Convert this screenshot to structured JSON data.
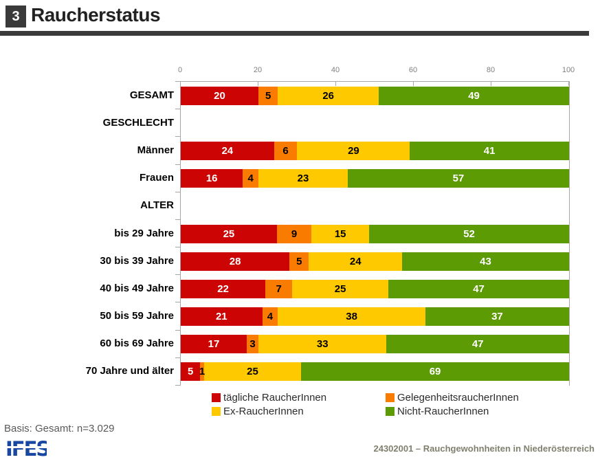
{
  "header": {
    "badge": "3",
    "title": "Raucherstatus",
    "bar_color": "#3A3A3A"
  },
  "chart_data": {
    "type": "bar",
    "stacked": true,
    "orientation": "horizontal",
    "xlim": [
      0,
      100
    ],
    "axis_ticks": [
      0,
      20,
      40,
      60,
      80,
      100
    ],
    "grid": false,
    "legend_position": "bottom",
    "categories": [
      "GESAMT",
      "GESCHLECHT",
      "Männer",
      "Frauen",
      "ALTER",
      "bis 29 Jahre",
      "30 bis 39 Jahre",
      "40 bis 49 Jahre",
      "50 bis 59 Jahre",
      "60 bis 69 Jahre",
      "70 Jahre und älter"
    ],
    "series": [
      {
        "name": "tägliche RaucherInnen",
        "color": "#CC0404",
        "label_color": "#FFFFFF",
        "values": [
          20,
          null,
          24,
          16,
          null,
          25,
          28,
          22,
          21,
          17,
          5
        ]
      },
      {
        "name": "GelegenheitsraucherInnen",
        "color": "#F97C00",
        "label_color": "#000000",
        "values": [
          5,
          null,
          6,
          4,
          null,
          9,
          5,
          7,
          4,
          3,
          1
        ]
      },
      {
        "name": "Ex-RaucherInnen",
        "color": "#FFC900",
        "label_color": "#000000",
        "values": [
          26,
          null,
          29,
          23,
          null,
          15,
          24,
          25,
          38,
          33,
          25
        ]
      },
      {
        "name": "Nicht-RaucherInnen",
        "color": "#5C9B04",
        "label_color": "#FFFFFF",
        "values": [
          49,
          null,
          41,
          57,
          null,
          52,
          43,
          47,
          37,
          47,
          69
        ]
      }
    ]
  },
  "footer": {
    "basis_label": "Basis: Gesamt: n=3.029",
    "logo_text": "IFES",
    "logo_color": "#1747A0",
    "report_label": "24302001 – Rauchgewohnheiten in Niederösterreich"
  }
}
